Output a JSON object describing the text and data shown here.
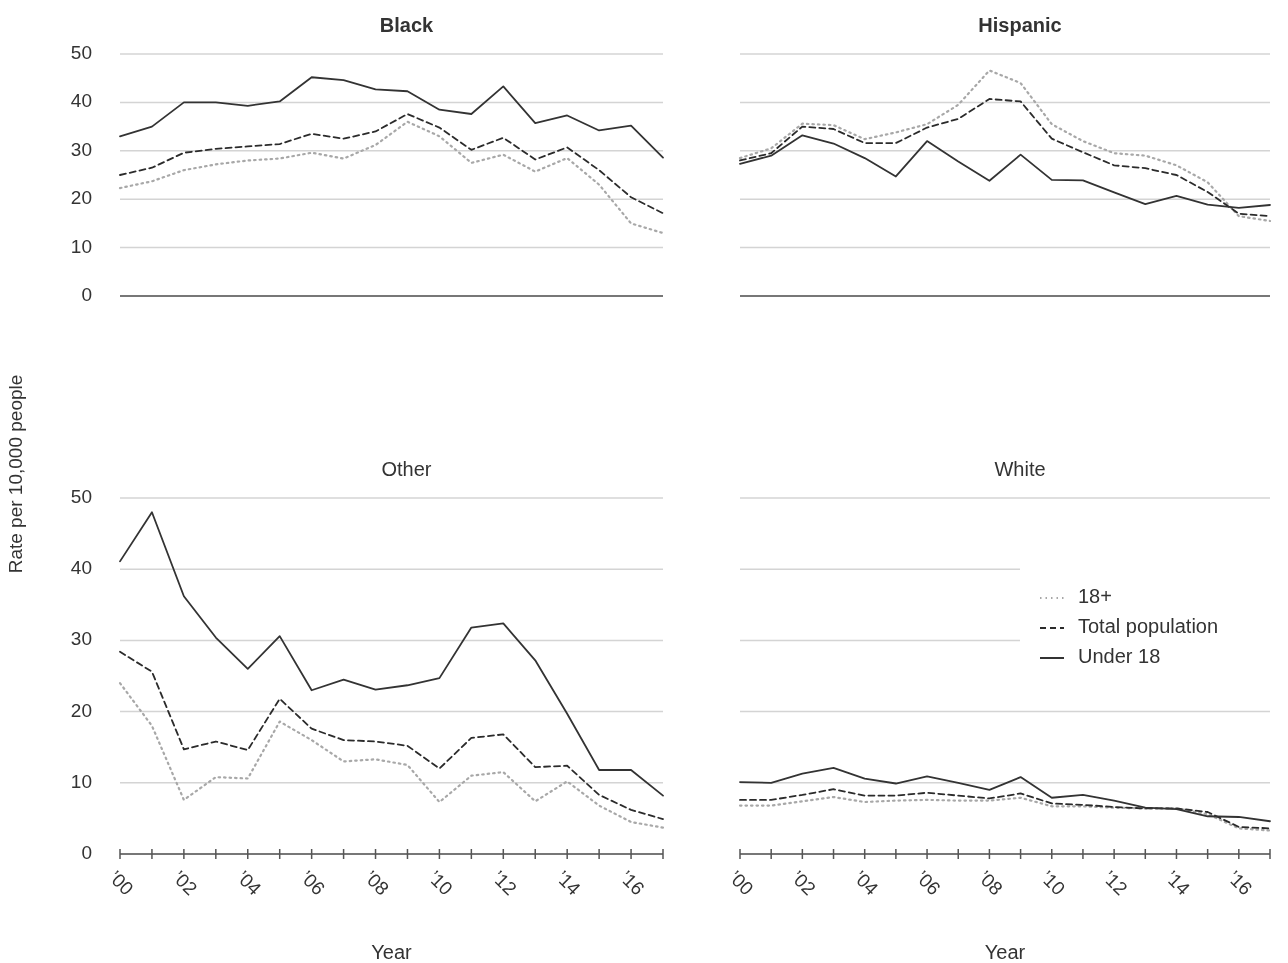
{
  "chart_data": [
    {
      "type": "line",
      "title": "Black",
      "ylabel": "Rate per 10,000 people",
      "x": [
        2000,
        2001,
        2002,
        2003,
        2004,
        2005,
        2006,
        2007,
        2008,
        2009,
        2010,
        2011,
        2012,
        2013,
        2014,
        2015,
        2016,
        2017
      ],
      "xlim": [
        2000,
        2017
      ],
      "ylim": [
        0,
        50
      ],
      "yticks": [
        0,
        10,
        20,
        30,
        40,
        50
      ],
      "grid": "y",
      "legend": false,
      "tick_labels": "y",
      "series": [
        {
          "color": "#a8a8a8",
          "line_style": "dotted",
          "values": [
            22.3,
            23.7,
            26,
            27.2,
            28,
            28.4,
            29.6,
            28.4,
            31.2,
            36,
            33,
            27.5,
            29.2,
            25.7,
            28.5,
            23,
            15,
            13
          ]
        },
        {
          "color": "#2b2b2b",
          "line_style": "dashed",
          "values": [
            25,
            26.5,
            29.6,
            30.4,
            30.9,
            31.4,
            33.5,
            32.5,
            34,
            37.6,
            34.8,
            30.2,
            32.7,
            28.2,
            30.7,
            26,
            20.4,
            17.1
          ]
        },
        {
          "color": "#333333",
          "line_style": "solid",
          "values": [
            33,
            35,
            40,
            40,
            39.3,
            40.2,
            45.2,
            44.6,
            42.7,
            42.3,
            38.5,
            37.6,
            43.3,
            35.7,
            37.3,
            34.2,
            35.2,
            28.6
          ]
        }
      ]
    },
    {
      "type": "line",
      "title": "Hispanic",
      "x": [
        2000,
        2001,
        2002,
        2003,
        2004,
        2005,
        2006,
        2007,
        2008,
        2009,
        2010,
        2011,
        2012,
        2013,
        2014,
        2015,
        2016,
        2017
      ],
      "xlim": [
        2000,
        2017
      ],
      "ylim": [
        0,
        50
      ],
      "yticks": [
        0,
        10,
        20,
        30,
        40,
        50
      ],
      "grid": "y",
      "legend": false,
      "tick_labels": false,
      "series": [
        {
          "color": "#a8a8a8",
          "line_style": "dotted",
          "values": [
            28.5,
            30.5,
            35.6,
            35.3,
            32.4,
            33.8,
            35.5,
            39.5,
            46.6,
            44,
            35.5,
            32,
            29.5,
            29,
            27,
            23.5,
            16.5,
            15.5
          ]
        },
        {
          "color": "#2b2b2b",
          "line_style": "dashed",
          "values": [
            28,
            29.5,
            35,
            34.5,
            31.6,
            31.6,
            34.8,
            36.6,
            40.7,
            40.2,
            32.5,
            29.7,
            27,
            26.4,
            25,
            21.5,
            17,
            16.5
          ]
        },
        {
          "color": "#333333",
          "line_style": "solid",
          "values": [
            27.3,
            29,
            33.2,
            31.5,
            28.5,
            24.7,
            32,
            27.8,
            23.8,
            29.2,
            24,
            23.9,
            21.4,
            19,
            20.7,
            18.9,
            18.2,
            18.8
          ]
        }
      ]
    },
    {
      "type": "line",
      "title": "Other",
      "xlabel": "Year",
      "x": [
        2000,
        2001,
        2002,
        2003,
        2004,
        2005,
        2006,
        2007,
        2008,
        2009,
        2010,
        2011,
        2012,
        2013,
        2014,
        2015,
        2016,
        2017
      ],
      "xlim": [
        2000,
        2017
      ],
      "xticks": [
        {
          "value": 2000,
          "label": "’00"
        },
        {
          "value": 2001,
          "label": null
        },
        {
          "value": 2002,
          "label": "’02"
        },
        {
          "value": 2003,
          "label": null
        },
        {
          "value": 2004,
          "label": "’04"
        },
        {
          "value": 2005,
          "label": null
        },
        {
          "value": 2006,
          "label": "’06"
        },
        {
          "value": 2007,
          "label": null
        },
        {
          "value": 2008,
          "label": "’08"
        },
        {
          "value": 2009,
          "label": null
        },
        {
          "value": 2010,
          "label": "’10"
        },
        {
          "value": 2011,
          "label": null
        },
        {
          "value": 2012,
          "label": "’12"
        },
        {
          "value": 2013,
          "label": null
        },
        {
          "value": 2014,
          "label": "’14"
        },
        {
          "value": 2015,
          "label": null
        },
        {
          "value": 2016,
          "label": "’16"
        },
        {
          "value": 2017,
          "label": null
        }
      ],
      "ylim": [
        0,
        50
      ],
      "yticks": [
        0,
        10,
        20,
        30,
        40,
        50
      ],
      "grid": "y",
      "legend": false,
      "series": [
        {
          "color": "#a8a8a8",
          "line_style": "dotted",
          "values": [
            24,
            18,
            7.6,
            10.8,
            10.6,
            18.6,
            16,
            13,
            13.3,
            12.5,
            7.3,
            11,
            11.5,
            7.4,
            10.2,
            6.8,
            4.5,
            3.7
          ]
        },
        {
          "color": "#2b2b2b",
          "line_style": "dashed",
          "values": [
            28.4,
            25.6,
            14.7,
            15.8,
            14.6,
            21.8,
            17.6,
            16,
            15.8,
            15.2,
            12,
            16.3,
            16.8,
            12.2,
            12.4,
            8.3,
            6.2,
            4.9
          ]
        },
        {
          "color": "#333333",
          "line_style": "solid",
          "values": [
            41.1,
            48,
            36.2,
            30.4,
            26,
            30.6,
            23,
            24.5,
            23.1,
            23.7,
            24.7,
            31.8,
            32.4,
            27.2,
            19.7,
            11.8,
            11.8,
            8.2
          ]
        }
      ]
    },
    {
      "type": "line",
      "title": "White",
      "xlabel": "Year",
      "x": [
        2000,
        2001,
        2002,
        2003,
        2004,
        2005,
        2006,
        2007,
        2008,
        2009,
        2010,
        2011,
        2012,
        2013,
        2014,
        2015,
        2016,
        2017
      ],
      "xlim": [
        2000,
        2017
      ],
      "xticks": [
        {
          "value": 2000,
          "label": "’00"
        },
        {
          "value": 2001,
          "label": null
        },
        {
          "value": 2002,
          "label": "’02"
        },
        {
          "value": 2003,
          "label": null
        },
        {
          "value": 2004,
          "label": "’04"
        },
        {
          "value": 2005,
          "label": null
        },
        {
          "value": 2006,
          "label": "’06"
        },
        {
          "value": 2007,
          "label": null
        },
        {
          "value": 2008,
          "label": "’08"
        },
        {
          "value": 2009,
          "label": null
        },
        {
          "value": 2010,
          "label": "’10"
        },
        {
          "value": 2011,
          "label": null
        },
        {
          "value": 2012,
          "label": "’12"
        },
        {
          "value": 2013,
          "label": null
        },
        {
          "value": 2014,
          "label": "’14"
        },
        {
          "value": 2015,
          "label": null
        },
        {
          "value": 2016,
          "label": "’16"
        },
        {
          "value": 2017,
          "label": null
        }
      ],
      "ylim": [
        0,
        50
      ],
      "yticks": [
        0,
        10,
        20,
        30,
        40,
        50
      ],
      "grid": "y",
      "legend": "top right",
      "tick_labels": "x",
      "series": [
        {
          "name": "18+",
          "color": "#a8a8a8",
          "line_style": "dotted",
          "values": [
            6.8,
            6.8,
            7.4,
            8,
            7.3,
            7.5,
            7.6,
            7.5,
            7.5,
            7.9,
            6.7,
            6.7,
            6.5,
            6.4,
            6.4,
            5.6,
            3.6,
            3.3
          ]
        },
        {
          "name": "Total population",
          "color": "#2b2b2b",
          "line_style": "dashed",
          "values": [
            7.6,
            7.6,
            8.3,
            9.1,
            8.2,
            8.2,
            8.6,
            8.2,
            7.8,
            8.5,
            7.1,
            6.9,
            6.6,
            6.4,
            6.4,
            5.9,
            3.8,
            3.6
          ]
        },
        {
          "name": "Under 18",
          "color": "#333333",
          "line_style": "solid",
          "values": [
            10.1,
            10,
            11.3,
            12.1,
            10.6,
            9.9,
            10.9,
            10,
            9,
            10.8,
            7.9,
            8.3,
            7.5,
            6.5,
            6.3,
            5.3,
            5.2,
            4.6
          ]
        }
      ]
    }
  ]
}
